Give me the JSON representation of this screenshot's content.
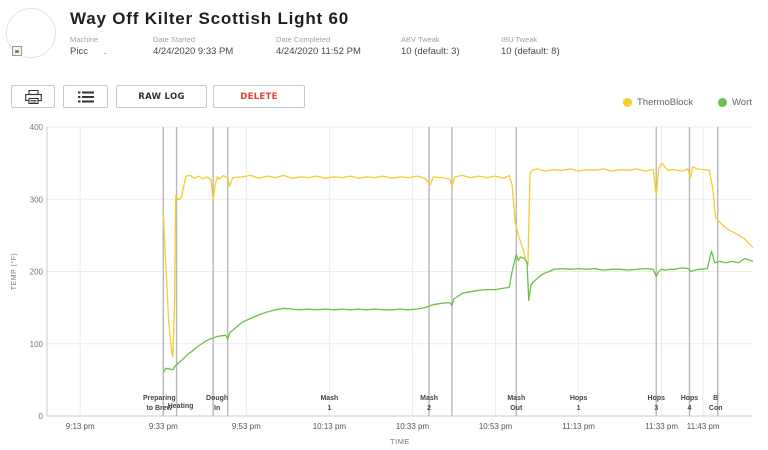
{
  "header": {
    "title": "Way Off Kilter Scottish Light 60",
    "fields": [
      {
        "label": "Machine",
        "value": "Picc      ."
      },
      {
        "label": "Date Started",
        "value": "4/24/2020 9:33 PM"
      },
      {
        "label": "Date Completed",
        "value": "4/24/2020 11:52 PM"
      },
      {
        "label": "ABV Tweak",
        "value": "10 (default: 3)"
      },
      {
        "label": "IBU Tweak",
        "value": "10 (default: 8)"
      }
    ]
  },
  "toolbar": {
    "print_icon": "printer-icon",
    "list_icon": "list-icon",
    "raw_log_label": "RAW LOG",
    "delete_label": "DELETE"
  },
  "legend": [
    {
      "name": "ThermoBlock",
      "color": "#f5cd2e"
    },
    {
      "name": "Wort",
      "color": "#6cc04a"
    }
  ],
  "chart_data": {
    "type": "line",
    "xlabel": "TIME",
    "ylabel": "TEMP (°F)",
    "ylim": [
      0,
      400
    ],
    "yticks": [
      0,
      100,
      200,
      300,
      400
    ],
    "xlim_minutes": [
      1265,
      1435
    ],
    "xticks": [
      {
        "t": 1273,
        "label": "9:13 pm"
      },
      {
        "t": 1293,
        "label": "9:33 pm"
      },
      {
        "t": 1313,
        "label": "9:53 pm"
      },
      {
        "t": 1333,
        "label": "10:13 pm"
      },
      {
        "t": 1353,
        "label": "10:33 pm"
      },
      {
        "t": 1373,
        "label": "10:53 pm"
      },
      {
        "t": 1393,
        "label": "11:13 pm"
      },
      {
        "t": 1413,
        "label": "11:33 pm"
      },
      {
        "t": 1423,
        "label": "11:43 pm"
      }
    ],
    "grid": true,
    "legend_position": "top-right",
    "phase_markers": [
      {
        "t": 1293.0,
        "label": [
          "Preparing",
          "to Brew"
        ]
      },
      {
        "t": 1296.2,
        "label": [
          "Heating"
        ]
      },
      {
        "t": 1305.0,
        "label": [
          "Dough",
          "In"
        ]
      },
      {
        "t": 1308.5,
        "label": []
      },
      {
        "t": 1357.0,
        "label": [
          "Mash",
          "2"
        ]
      },
      {
        "t": 1362.5,
        "label": []
      },
      {
        "t": 1378.0,
        "label": [
          "Mash",
          "Out"
        ]
      },
      {
        "t": 1411.7,
        "label": [
          "Hops",
          "3"
        ]
      },
      {
        "t": 1419.7,
        "label": [
          "Hops",
          "4"
        ]
      },
      {
        "t": 1426.5,
        "label": [
          "B",
          "Con"
        ]
      }
    ],
    "phase_labels_between": [
      {
        "t": 1333,
        "label": [
          "Mash",
          "1"
        ]
      },
      {
        "t": 1393,
        "label": [
          "Hops",
          "1"
        ]
      }
    ],
    "series": [
      {
        "name": "ThermoBlock",
        "color": "#f5cd2e",
        "points": [
          [
            1293.0,
            280
          ],
          [
            1293.7,
            200
          ],
          [
            1294.3,
            130
          ],
          [
            1295.0,
            90
          ],
          [
            1295.3,
            82
          ],
          [
            1295.7,
            150
          ],
          [
            1296.0,
            305
          ],
          [
            1296.5,
            300
          ],
          [
            1297.0,
            300
          ],
          [
            1297.5,
            305
          ],
          [
            1298.0,
            320
          ],
          [
            1298.5,
            332
          ],
          [
            1299.5,
            333
          ],
          [
            1300.5,
            329
          ],
          [
            1301.5,
            332
          ],
          [
            1302.5,
            328
          ],
          [
            1303.5,
            331
          ],
          [
            1304.5,
            327
          ],
          [
            1305.0,
            300
          ],
          [
            1305.5,
            320
          ],
          [
            1306.0,
            331
          ],
          [
            1306.5,
            328
          ],
          [
            1307.5,
            333
          ],
          [
            1308.5,
            329
          ],
          [
            1309.0,
            318
          ],
          [
            1309.7,
            330
          ],
          [
            1312,
            331
          ],
          [
            1314,
            333
          ],
          [
            1316,
            329
          ],
          [
            1318,
            332
          ],
          [
            1320,
            330
          ],
          [
            1322,
            333
          ],
          [
            1324,
            329
          ],
          [
            1326,
            331
          ],
          [
            1328,
            330
          ],
          [
            1330,
            332
          ],
          [
            1332,
            329
          ],
          [
            1334,
            331
          ],
          [
            1336,
            330
          ],
          [
            1338,
            332
          ],
          [
            1340,
            329
          ],
          [
            1342,
            331
          ],
          [
            1344,
            330
          ],
          [
            1346,
            332
          ],
          [
            1348,
            329
          ],
          [
            1350,
            331
          ],
          [
            1352,
            330
          ],
          [
            1354,
            332
          ],
          [
            1356,
            329
          ],
          [
            1357.3,
            320
          ],
          [
            1358,
            331
          ],
          [
            1360,
            330
          ],
          [
            1362.0,
            328
          ],
          [
            1362.5,
            318
          ],
          [
            1363.2,
            331
          ],
          [
            1365,
            333
          ],
          [
            1367,
            330
          ],
          [
            1369,
            332
          ],
          [
            1371,
            330
          ],
          [
            1373,
            332
          ],
          [
            1375,
            329
          ],
          [
            1376.3,
            333
          ],
          [
            1377.0,
            320
          ],
          [
            1377.7,
            270
          ],
          [
            1378.5,
            250
          ],
          [
            1379.7,
            230
          ],
          [
            1380.3,
            215
          ],
          [
            1380.8,
            208
          ],
          [
            1381.3,
            335
          ],
          [
            1381.8,
            340
          ],
          [
            1383,
            342
          ],
          [
            1385,
            339
          ],
          [
            1387,
            341
          ],
          [
            1389,
            340
          ],
          [
            1391,
            342
          ],
          [
            1393,
            339
          ],
          [
            1395,
            341
          ],
          [
            1397,
            340
          ],
          [
            1399,
            342
          ],
          [
            1401,
            339
          ],
          [
            1403,
            341
          ],
          [
            1405,
            340
          ],
          [
            1407,
            342
          ],
          [
            1409,
            339
          ],
          [
            1411,
            341
          ],
          [
            1411.7,
            305
          ],
          [
            1412.3,
            342
          ],
          [
            1413,
            350
          ],
          [
            1414.5,
            340
          ],
          [
            1416,
            341
          ],
          [
            1418,
            339
          ],
          [
            1419.3,
            342
          ],
          [
            1419.9,
            330
          ],
          [
            1420.5,
            345
          ],
          [
            1421.5,
            342
          ],
          [
            1423,
            341
          ],
          [
            1424.5,
            340
          ],
          [
            1425.3,
            315
          ],
          [
            1426,
            275
          ],
          [
            1427.5,
            265
          ],
          [
            1429,
            258
          ],
          [
            1431,
            252
          ],
          [
            1433,
            245
          ],
          [
            1435,
            233
          ]
        ]
      },
      {
        "name": "Wort",
        "color": "#6cc04a",
        "points": [
          [
            1293.0,
            60
          ],
          [
            1293.6,
            66
          ],
          [
            1294.5,
            65
          ],
          [
            1295.3,
            64
          ],
          [
            1296,
            70
          ],
          [
            1297,
            75
          ],
          [
            1298,
            80
          ],
          [
            1299,
            86
          ],
          [
            1300,
            90
          ],
          [
            1301,
            95
          ],
          [
            1302,
            99
          ],
          [
            1303,
            103
          ],
          [
            1304,
            106
          ],
          [
            1305,
            108
          ],
          [
            1306,
            110
          ],
          [
            1307,
            111
          ],
          [
            1308,
            112
          ],
          [
            1308.5,
            106
          ],
          [
            1309,
            115
          ],
          [
            1310,
            120
          ],
          [
            1311,
            125
          ],
          [
            1312,
            130
          ],
          [
            1314,
            135
          ],
          [
            1316,
            140
          ],
          [
            1318,
            144
          ],
          [
            1320,
            147
          ],
          [
            1322,
            149
          ],
          [
            1324,
            148
          ],
          [
            1326,
            147
          ],
          [
            1328,
            148
          ],
          [
            1330,
            147
          ],
          [
            1332,
            148
          ],
          [
            1334,
            147
          ],
          [
            1336,
            148
          ],
          [
            1338,
            147
          ],
          [
            1340,
            148
          ],
          [
            1342,
            147
          ],
          [
            1344,
            148
          ],
          [
            1346,
            147
          ],
          [
            1348,
            147
          ],
          [
            1350,
            148
          ],
          [
            1352,
            147
          ],
          [
            1354,
            148
          ],
          [
            1356,
            150
          ],
          [
            1357,
            152
          ],
          [
            1358,
            154
          ],
          [
            1360,
            156
          ],
          [
            1362,
            157
          ],
          [
            1362.5,
            153
          ],
          [
            1363,
            162
          ],
          [
            1364,
            166
          ],
          [
            1365,
            170
          ],
          [
            1367,
            172
          ],
          [
            1369,
            174
          ],
          [
            1371,
            175
          ],
          [
            1373,
            175
          ],
          [
            1375,
            177
          ],
          [
            1376.3,
            178
          ],
          [
            1377,
            200
          ],
          [
            1378,
            224
          ],
          [
            1378.5,
            215
          ],
          [
            1379,
            220
          ],
          [
            1380,
            218
          ],
          [
            1380.6,
            212
          ],
          [
            1381.0,
            160
          ],
          [
            1381.5,
            180
          ],
          [
            1382,
            185
          ],
          [
            1383,
            190
          ],
          [
            1384,
            195
          ],
          [
            1385,
            198
          ],
          [
            1386,
            200
          ],
          [
            1387,
            203
          ],
          [
            1389,
            204
          ],
          [
            1391,
            203
          ],
          [
            1393,
            204
          ],
          [
            1395,
            203
          ],
          [
            1397,
            204
          ],
          [
            1399,
            202
          ],
          [
            1401,
            203
          ],
          [
            1403,
            203
          ],
          [
            1405,
            202
          ],
          [
            1407,
            203
          ],
          [
            1409,
            204
          ],
          [
            1411,
            203
          ],
          [
            1411.7,
            193
          ],
          [
            1412.3,
            200
          ],
          [
            1413,
            203
          ],
          [
            1414,
            202
          ],
          [
            1415,
            203
          ],
          [
            1416,
            203
          ],
          [
            1418,
            205
          ],
          [
            1419.5,
            204
          ],
          [
            1420,
            200
          ],
          [
            1421,
            202
          ],
          [
            1422,
            203
          ],
          [
            1424,
            204
          ],
          [
            1425.0,
            228
          ],
          [
            1425.8,
            212
          ],
          [
            1427,
            214
          ],
          [
            1428.5,
            212
          ],
          [
            1430,
            214
          ],
          [
            1431.5,
            212
          ],
          [
            1433,
            218
          ],
          [
            1435,
            214
          ]
        ]
      }
    ]
  }
}
